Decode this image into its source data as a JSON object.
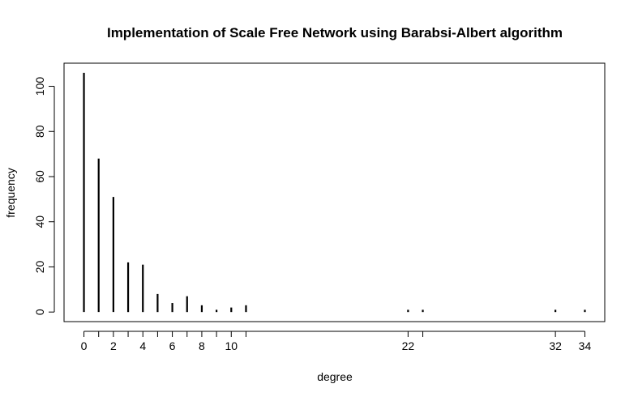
{
  "chart_data": {
    "type": "bar",
    "title": "Implementation of Scale Free Network using Barabsi-Albert algorithm",
    "xlabel": "degree",
    "ylabel": "frequency",
    "x": [
      0,
      1,
      2,
      3,
      4,
      5,
      6,
      7,
      8,
      9,
      10,
      11,
      22,
      23,
      32,
      34
    ],
    "values": [
      106,
      68,
      51,
      22,
      21,
      8,
      4,
      7,
      3,
      1,
      2,
      3,
      1,
      1,
      1,
      1
    ],
    "x_tick_labels": [
      "0",
      "2",
      "4",
      "6",
      "8",
      "10",
      "22",
      "32",
      "34"
    ],
    "x_tick_label_values": [
      0,
      2,
      4,
      6,
      8,
      10,
      22,
      32,
      34
    ],
    "x_tick_marks": [
      0,
      1,
      2,
      3,
      4,
      5,
      6,
      7,
      8,
      9,
      10,
      11,
      22,
      23,
      32,
      34
    ],
    "y_ticks": [
      0,
      20,
      40,
      60,
      80,
      100
    ],
    "y_tick_labels": [
      "0",
      "20",
      "40",
      "60",
      "80",
      "100"
    ],
    "xlim": [
      -1.35,
      35.35
    ],
    "ylim": [
      -4.24,
      110.24
    ],
    "grid": false,
    "legend": "none",
    "bar_color": "#000000"
  }
}
